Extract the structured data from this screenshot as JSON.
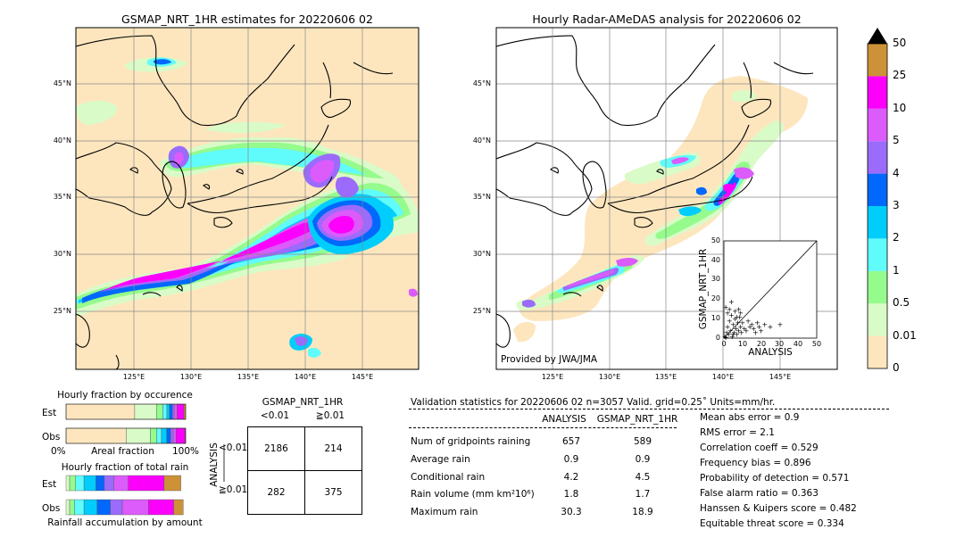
{
  "left_map": {
    "title": "GSMAP_NRT_1HR estimates for 20220606 02",
    "lat_labels": [
      "45°N",
      "40°N",
      "35°N",
      "30°N",
      "25°N"
    ],
    "lon_labels": [
      "125°E",
      "130°E",
      "135°E",
      "140°E",
      "145°E"
    ]
  },
  "right_map": {
    "title": "Hourly Radar-AMeDAS analysis for 20220606 02",
    "lat_labels": [
      "45°N",
      "40°N",
      "35°N",
      "30°N",
      "25°N"
    ],
    "lon_labels": [
      "125°E",
      "130°E",
      "135°E",
      "140°E",
      "145°E"
    ],
    "credit": "Provided by JWA/JMA"
  },
  "colorbar": {
    "labels": [
      "0",
      "0.01",
      "0.5",
      "1",
      "2",
      "3",
      "4",
      "5",
      "10",
      "25",
      "50"
    ],
    "colors": [
      "#fde6be",
      "#d9fbc7",
      "#94fb8c",
      "#60fbfb",
      "#00cdfb",
      "#0068fb",
      "#9b6bfb",
      "#db5bfb",
      "#fb00fb",
      "#cd9137"
    ]
  },
  "chart_data": [
    {
      "type": "scatter",
      "name": "inset",
      "xlabel": "ANALYSIS",
      "ylabel": "GSMAP_NRT_1HR",
      "xlim": [
        0,
        50
      ],
      "ylim": [
        0,
        50
      ],
      "xticks": [
        "0",
        "10",
        "20",
        "30",
        "40",
        "50"
      ],
      "yticks": [
        "0",
        "10",
        "20",
        "30",
        "40",
        "50"
      ],
      "points": [
        [
          0.5,
          1
        ],
        [
          1,
          0.5
        ],
        [
          1.5,
          3
        ],
        [
          2,
          6
        ],
        [
          2.5,
          2
        ],
        [
          3,
          9
        ],
        [
          3.5,
          4
        ],
        [
          4,
          12
        ],
        [
          4.5,
          1
        ],
        [
          5,
          7
        ],
        [
          5.5,
          3
        ],
        [
          6,
          10
        ],
        [
          6.5,
          5
        ],
        [
          7,
          2
        ],
        [
          7.5,
          8
        ],
        [
          8,
          4
        ],
        [
          8.5,
          11
        ],
        [
          9,
          6
        ],
        [
          9.5,
          3
        ],
        [
          10,
          8
        ],
        [
          11,
          5
        ],
        [
          12,
          4
        ],
        [
          13,
          9
        ],
        [
          14,
          6
        ],
        [
          15,
          7
        ],
        [
          16,
          5
        ],
        [
          17,
          3
        ],
        [
          18,
          8
        ],
        [
          19,
          6
        ],
        [
          20,
          4
        ],
        [
          22,
          7
        ],
        [
          25,
          6
        ],
        [
          30.3,
          7
        ],
        [
          3,
          15
        ],
        [
          4,
          18.9
        ],
        [
          6,
          14
        ],
        [
          2,
          13
        ],
        [
          8,
          15
        ],
        [
          1,
          16
        ],
        [
          5,
          2
        ],
        [
          7,
          11
        ],
        [
          9,
          13
        ]
      ]
    },
    {
      "type": "bar",
      "name": "Hourly fraction by occurence",
      "rows": [
        "Est",
        "Obs"
      ],
      "categories": [
        "0",
        "0.01",
        "0.5",
        "1",
        "2",
        "3",
        "4",
        "5",
        "10",
        "25"
      ],
      "series": [
        {
          "name": "Est",
          "values": [
            0.574,
            0.182,
            0.053,
            0.034,
            0.022,
            0.024,
            0.015,
            0.025,
            0.057,
            0.014
          ]
        },
        {
          "name": "Obs",
          "values": [
            0.503,
            0.202,
            0.052,
            0.041,
            0.044,
            0.032,
            0.022,
            0.023,
            0.077,
            0.004
          ]
        }
      ],
      "xlabel": "Areal fraction",
      "xtick_labels": [
        "0%",
        "100%"
      ]
    },
    {
      "type": "bar",
      "name": "Hourly fraction of total rain",
      "rows": [
        "Est",
        "Obs"
      ],
      "categories": [
        "0",
        "0.01",
        "0.5",
        "1",
        "2",
        "3",
        "4",
        "5",
        "10",
        "25"
      ],
      "series": [
        {
          "name": "Est",
          "values": [
            0.0,
            0.03,
            0.05,
            0.07,
            0.1,
            0.07,
            0.08,
            0.12,
            0.3,
            0.14
          ]
        },
        {
          "name": "Obs",
          "values": [
            0.0,
            0.03,
            0.04,
            0.08,
            0.11,
            0.11,
            0.1,
            0.22,
            0.21,
            0.08
          ]
        }
      ],
      "xlabel": "Rainfall accumulation by amount"
    }
  ],
  "labels": {
    "occ_title": "Hourly fraction by occurence",
    "rain_title": "Hourly fraction of total rain",
    "est": "Est",
    "obs": "Obs",
    "pct0": "0%",
    "pct100": "100%",
    "areal": "Areal fraction",
    "accum": "Rainfall accumulation by amount"
  },
  "contingency": {
    "title": "GSMAP_NRT_1HR",
    "col1": "<0.01",
    "col2": "≧0.01",
    "row_axis": "ANALYSIS",
    "row1": "<0.01",
    "row2": "≧0.01",
    "cells": [
      "2186",
      "214",
      "282",
      "375"
    ]
  },
  "validation": {
    "header": "Validation statistics for 20220606 02  n=3057 Valid. grid=0.25˚ Units=mm/hr.",
    "col_analysis": "ANALYSIS",
    "col_gsmap": "GSMAP_NRT_1HR",
    "rows": [
      {
        "label": "Num of gridpoints raining",
        "analysis": "657",
        "gsmap": "589"
      },
      {
        "label": "Average rain",
        "analysis": "0.9",
        "gsmap": "0.9"
      },
      {
        "label": "Conditional rain",
        "analysis": "4.2",
        "gsmap": "4.5"
      },
      {
        "label": "Rain volume (mm km²10⁶)",
        "analysis": "1.8",
        "gsmap": "1.7"
      },
      {
        "label": "Maximum rain",
        "analysis": "30.3",
        "gsmap": "18.9"
      }
    ],
    "scores": [
      "Mean abs error =    0.9",
      "RMS error =    2.1",
      "Correlation coeff =  0.529",
      "Frequency bias =  0.896",
      "Probability of detection =  0.571",
      "False alarm ratio =  0.363",
      "Hanssen & Kuipers score =  0.482",
      "Equitable threat score =  0.334"
    ]
  }
}
